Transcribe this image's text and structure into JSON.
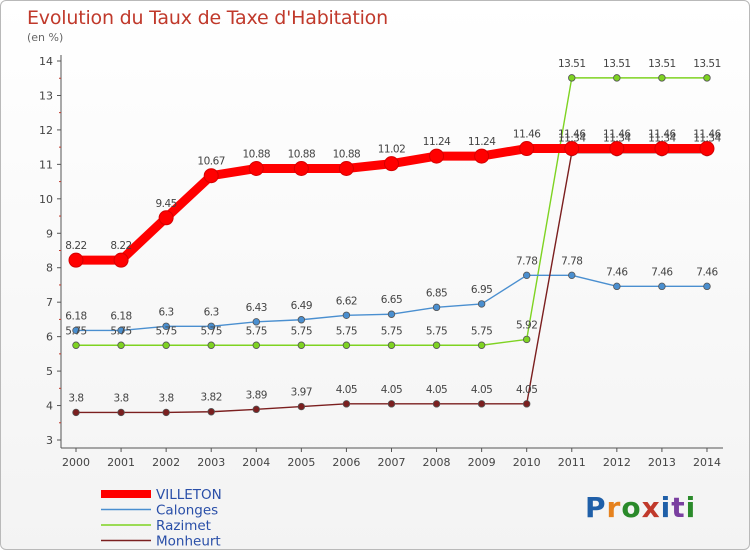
{
  "title": "Evolution du Taux de Taxe d'Habitation",
  "subtitle": "(en %)",
  "logo_text": "Proxiti",
  "logo_colors": [
    "#1f5fa8",
    "#e6821e",
    "#2a8a2a",
    "#c0392b",
    "#1f5fa8",
    "#7a3fa0",
    "#2a8a2a"
  ],
  "chart_data": {
    "type": "line",
    "x": [
      "2000",
      "2001",
      "2002",
      "2003",
      "2004",
      "2005",
      "2006",
      "2007",
      "2008",
      "2009",
      "2010",
      "2011",
      "2012",
      "2013",
      "2014"
    ],
    "ylim": [
      3,
      14
    ],
    "yticks": [
      "3",
      "4",
      "5",
      "6",
      "7",
      "8",
      "9",
      "10",
      "11",
      "12",
      "13",
      "14"
    ],
    "grid": false,
    "legend_position": "bottom-left",
    "series": [
      {
        "name": "VILLETON",
        "color": "#ff0000",
        "labels": [
          "8.22",
          "8.22",
          "9.45",
          "10.67",
          "10.88",
          "10.88",
          "10.88",
          "11.02",
          "11.24",
          "11.24",
          "11.46",
          "11.46",
          "11.46",
          "11.46",
          "11.46"
        ],
        "values": [
          8.22,
          8.22,
          9.45,
          10.67,
          10.88,
          10.88,
          10.88,
          11.02,
          11.24,
          11.24,
          11.46,
          11.46,
          11.46,
          11.46,
          11.46
        ]
      },
      {
        "name": "Calonges",
        "color": "#4a8fd0",
        "labels": [
          "6.18",
          "6.18",
          "6.3",
          "6.3",
          "6.43",
          "6.49",
          "6.62",
          "6.65",
          "6.85",
          "6.95",
          "7.78",
          "7.78",
          "7.46",
          "7.46",
          "7.46"
        ],
        "values": [
          6.18,
          6.18,
          6.3,
          6.3,
          6.43,
          6.49,
          6.62,
          6.65,
          6.85,
          6.95,
          7.78,
          7.78,
          7.46,
          7.46,
          7.46
        ]
      },
      {
        "name": "Razimet",
        "color": "#7ed321",
        "labels": [
          "5.75",
          "5.75",
          "5.75",
          "5.75",
          "5.75",
          "5.75",
          "5.75",
          "5.75",
          "5.75",
          "5.75",
          "5.92",
          "13.51",
          "13.51",
          "13.51",
          "13.51"
        ],
        "values": [
          5.75,
          5.75,
          5.75,
          5.75,
          5.75,
          5.75,
          5.75,
          5.75,
          5.75,
          5.75,
          5.92,
          13.51,
          13.51,
          13.51,
          13.51
        ]
      },
      {
        "name": "Monheurt",
        "color": "#7b1f1f",
        "labels": [
          "3.8",
          "3.8",
          "3.8",
          "3.82",
          "3.89",
          "3.97",
          "4.05",
          "4.05",
          "4.05",
          "4.05",
          "4.05",
          "11.34",
          "11.34",
          "11.34",
          "11.34"
        ],
        "values": [
          3.8,
          3.8,
          3.8,
          3.82,
          3.89,
          3.97,
          4.05,
          4.05,
          4.05,
          4.05,
          4.05,
          11.34,
          11.34,
          11.34,
          11.34
        ]
      }
    ]
  }
}
